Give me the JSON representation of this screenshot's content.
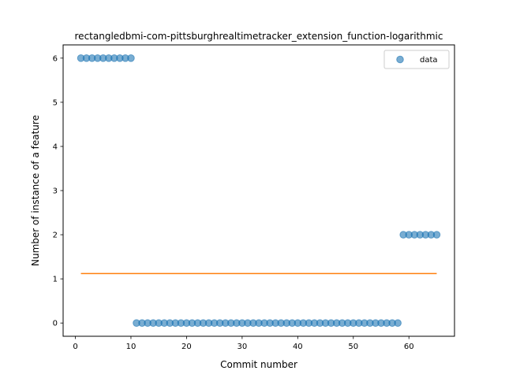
{
  "chart_data": {
    "type": "scatter",
    "title": "rectangledbmi-com-pittsburghrealtimetracker_extension_function-logarithmic",
    "xlabel": "Commit number",
    "ylabel": "Number of instance of a feature",
    "xlim": [
      -2.2,
      68.2
    ],
    "ylim": [
      -0.3,
      6.3
    ],
    "xticks": [
      0,
      10,
      20,
      30,
      40,
      50,
      60
    ],
    "yticks": [
      0,
      1,
      2,
      3,
      4,
      5,
      6
    ],
    "legend_position": "top-right",
    "grid": false,
    "colors": {
      "data": "#1f77b4",
      "fit": "#ff7f0e"
    },
    "series": [
      {
        "name": "data",
        "kind": "scatter",
        "x": [
          1,
          2,
          3,
          4,
          5,
          6,
          7,
          8,
          9,
          10,
          11,
          12,
          13,
          14,
          15,
          16,
          17,
          18,
          19,
          20,
          21,
          22,
          23,
          24,
          25,
          26,
          27,
          28,
          29,
          30,
          31,
          32,
          33,
          34,
          35,
          36,
          37,
          38,
          39,
          40,
          41,
          42,
          43,
          44,
          45,
          46,
          47,
          48,
          49,
          50,
          51,
          52,
          53,
          54,
          55,
          56,
          57,
          58,
          59,
          60,
          61,
          62,
          63,
          64,
          65
        ],
        "y": [
          6,
          6,
          6,
          6,
          6,
          6,
          6,
          6,
          6,
          6,
          0,
          0,
          0,
          0,
          0,
          0,
          0,
          0,
          0,
          0,
          0,
          0,
          0,
          0,
          0,
          0,
          0,
          0,
          0,
          0,
          0,
          0,
          0,
          0,
          0,
          0,
          0,
          0,
          0,
          0,
          0,
          0,
          0,
          0,
          0,
          0,
          0,
          0,
          0,
          0,
          0,
          0,
          0,
          0,
          0,
          0,
          0,
          0,
          2,
          2,
          2,
          2,
          2,
          2,
          2
        ]
      },
      {
        "kind": "line",
        "x": [
          1,
          65
        ],
        "y": [
          1.12,
          1.12
        ]
      }
    ]
  }
}
